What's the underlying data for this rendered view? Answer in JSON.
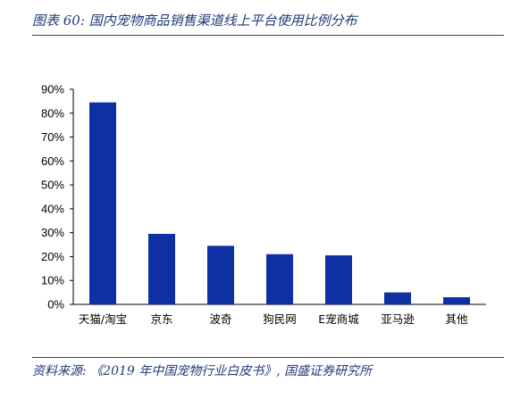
{
  "header": {
    "title": "图表 60:  国内宠物商品销售渠道线上平台使用比例分布"
  },
  "footer": {
    "source": "资料来源:  《2019 年中国宠物行业白皮书》, 国盛证券研究所"
  },
  "colors": {
    "bar": "#0d31a3",
    "text": "#1f3b77",
    "rule": "#24408a",
    "axis": "#000000"
  },
  "chart_data": {
    "type": "bar",
    "title": "",
    "xlabel": "",
    "ylabel": "",
    "categories": [
      "天猫/淘宝",
      "京东",
      "波奇",
      "狗民网",
      "E宠商城",
      "亚马逊",
      "其他"
    ],
    "values": [
      84.5,
      29.5,
      24.5,
      21.0,
      20.5,
      5.0,
      3.0
    ],
    "ylim": [
      0,
      90
    ],
    "yticks": [
      0,
      10,
      20,
      30,
      40,
      50,
      60,
      70,
      80,
      90
    ],
    "ytick_labels": [
      "0%",
      "10%",
      "20%",
      "30%",
      "40%",
      "50%",
      "60%",
      "70%",
      "80%",
      "90%"
    ],
    "grid": false,
    "legend": "none"
  }
}
